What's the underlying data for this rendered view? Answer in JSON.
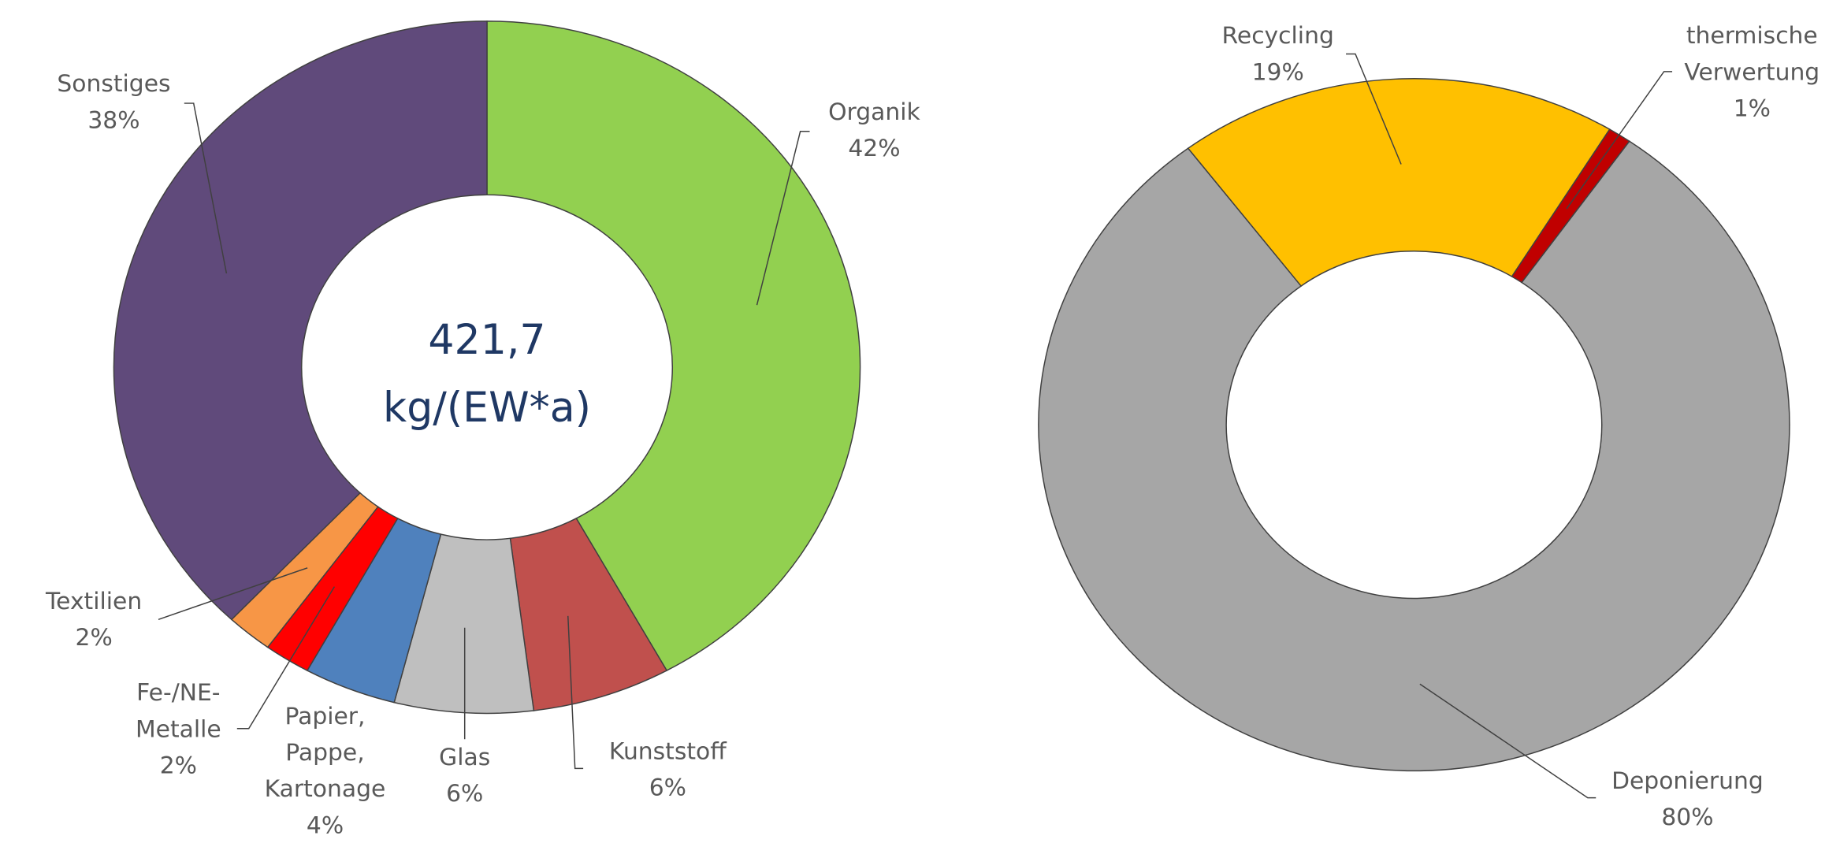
{
  "chart_data": [
    {
      "type": "donut",
      "center_text": [
        "421,7",
        "kg/(EW*a)"
      ],
      "categories": [
        "Organik",
        "Kunststoff",
        "Glas",
        "Papier,\nPappe,\nKartonage",
        "Fe-/NE-\nMetalle",
        "Textilien",
        "Sonstiges"
      ],
      "values": [
        42,
        6,
        6,
        4,
        2,
        2,
        38
      ],
      "value_labels": [
        "42%",
        "6%",
        "6%",
        "4%",
        "2%",
        "2%",
        "38%"
      ],
      "colors": [
        "#92d050",
        "#c0504d",
        "#bfbfbf",
        "#4f81bd",
        "#ff0000",
        "#f79646",
        "#604a7b"
      ]
    },
    {
      "type": "donut",
      "categories": [
        "Recycling",
        "thermische\nVerwertung",
        "Deponierung"
      ],
      "values": [
        19,
        1,
        80
      ],
      "value_labels": [
        "19%",
        "1%",
        "80%"
      ],
      "colors": [
        "#ffc000",
        "#c00000",
        "#a6a6a6"
      ]
    }
  ]
}
